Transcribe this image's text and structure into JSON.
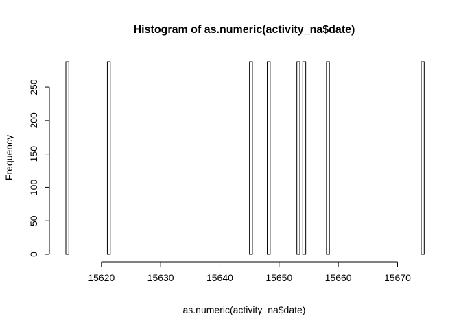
{
  "chart_data": {
    "type": "bar",
    "title": "Histogram of as.numeric(activity_na$date)",
    "xlabel": "as.numeric(activity_na$date)",
    "ylabel": "Frequency",
    "xlim": [
      15614,
      15674
    ],
    "ylim": [
      0,
      288
    ],
    "bin_width": 0.5,
    "x_ticks": [
      15620,
      15630,
      15640,
      15650,
      15660,
      15670
    ],
    "x_tick_labels": [
      "15620",
      "15630",
      "15640",
      "15650",
      "15660",
      "15670"
    ],
    "y_ticks": [
      0,
      50,
      100,
      150,
      200,
      250
    ],
    "y_tick_labels": [
      "0",
      "50",
      "100",
      "150",
      "200",
      "250"
    ],
    "bars": [
      {
        "x": 15614,
        "value": 288
      },
      {
        "x": 15621,
        "value": 288
      },
      {
        "x": 15645,
        "value": 288
      },
      {
        "x": 15648,
        "value": 288
      },
      {
        "x": 15653,
        "value": 288
      },
      {
        "x": 15654,
        "value": 288
      },
      {
        "x": 15658,
        "value": 288
      },
      {
        "x": 15674,
        "value": 288
      }
    ],
    "grid": false,
    "legend": "none",
    "colors": {
      "bar_fill": "#ffffff",
      "bar_stroke": "#000000"
    }
  }
}
